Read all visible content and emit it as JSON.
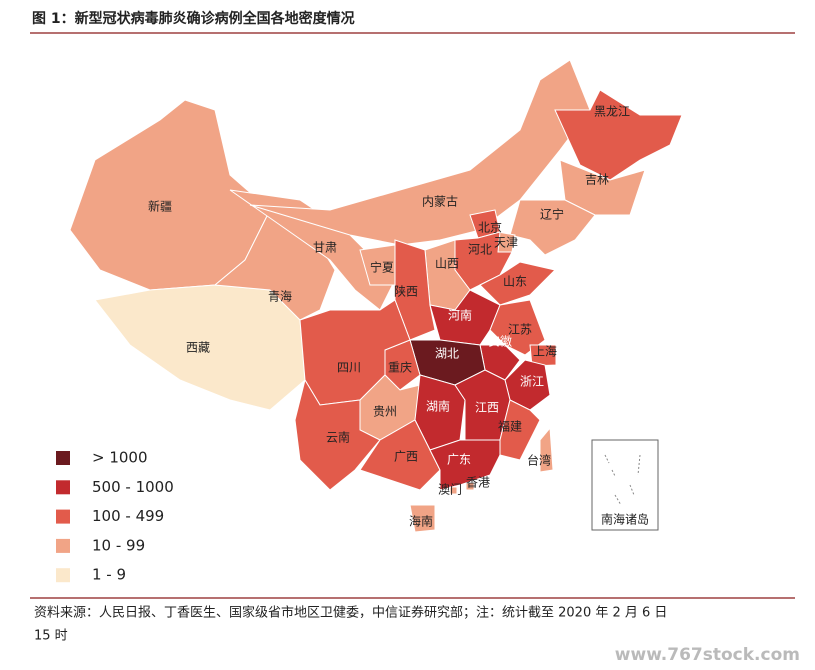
{
  "header": {
    "title": "图 1：新型冠状病毒肺炎确诊病例全国各地密度情况"
  },
  "legend": [
    {
      "label": "> 1000",
      "color": "#6b1a1f"
    },
    {
      "label": "500 - 1000",
      "color": "#c22a2e"
    },
    {
      "label": "100 - 499",
      "color": "#e25b4b"
    },
    {
      "label": "10 - 99",
      "color": "#f1a486"
    },
    {
      "label": "1 - 9",
      "color": "#fbe8cb"
    }
  ],
  "provinces": [
    {
      "name": "新疆",
      "color": "#f1a486"
    },
    {
      "name": "西藏",
      "color": "#fbe8cb"
    },
    {
      "name": "青海",
      "color": "#f1a486"
    },
    {
      "name": "甘肃",
      "color": "#f1a486"
    },
    {
      "name": "内蒙古",
      "color": "#f1a486"
    },
    {
      "name": "黑龙江",
      "color": "#e25b4b"
    },
    {
      "name": "吉林",
      "color": "#f1a486"
    },
    {
      "name": "辽宁",
      "color": "#f1a486"
    },
    {
      "name": "北京",
      "color": "#e25b4b"
    },
    {
      "name": "天津",
      "color": "#f1a486"
    },
    {
      "name": "河北",
      "color": "#e25b4b"
    },
    {
      "name": "山西",
      "color": "#f1a486"
    },
    {
      "name": "宁夏",
      "color": "#f1a486"
    },
    {
      "name": "陕西",
      "color": "#e25b4b"
    },
    {
      "name": "山东",
      "color": "#e25b4b"
    },
    {
      "name": "河南",
      "color": "#c22a2e"
    },
    {
      "name": "江苏",
      "color": "#e25b4b"
    },
    {
      "name": "安徽",
      "color": "#c22a2e"
    },
    {
      "name": "上海",
      "color": "#e25b4b"
    },
    {
      "name": "浙江",
      "color": "#c22a2e"
    },
    {
      "name": "湖北",
      "color": "#6b1a1f"
    },
    {
      "name": "重庆",
      "color": "#e25b4b"
    },
    {
      "name": "四川",
      "color": "#e25b4b"
    },
    {
      "name": "贵州",
      "color": "#f1a486"
    },
    {
      "name": "湖南",
      "color": "#c22a2e"
    },
    {
      "name": "江西",
      "color": "#c22a2e"
    },
    {
      "name": "福建",
      "color": "#e25b4b"
    },
    {
      "name": "云南",
      "color": "#e25b4b"
    },
    {
      "name": "广西",
      "color": "#e25b4b"
    },
    {
      "name": "广东",
      "color": "#c22a2e"
    },
    {
      "name": "海南",
      "color": "#f1a486"
    },
    {
      "name": "台湾",
      "color": "#f1a486"
    },
    {
      "name": "香港",
      "color": "#f1a486"
    },
    {
      "name": "澳门",
      "color": "#f1a486"
    }
  ],
  "inset": "南海诸岛",
  "footer": {
    "source_line1": "资料来源：人民日报、丁香医生、国家级省市地区卫健委，中信证券研究部；注：统计截至 2020 年 2 月 6 日",
    "source_line2": "15 时",
    "watermark": "www.767stock.com"
  }
}
